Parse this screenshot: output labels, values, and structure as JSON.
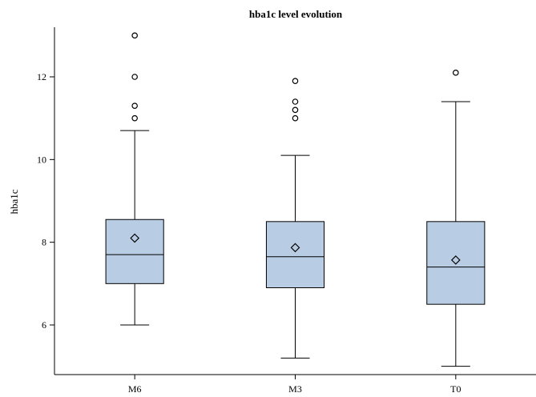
{
  "chart_data": {
    "type": "box",
    "title": "hba1c level evolution",
    "xlabel": "",
    "ylabel": "hba1c",
    "ylim": [
      4.8,
      13.2
    ],
    "yticks": [
      6,
      8,
      10,
      12
    ],
    "ytick_labels": [
      "6",
      "8",
      "10",
      "12"
    ],
    "grid": false,
    "legend": "none",
    "colors": {
      "box_fill": "#b8cce4",
      "stroke": "#000000"
    },
    "categories": [
      "M6",
      "M3",
      "T0"
    ],
    "boxes": [
      {
        "category": "M6",
        "whisker_low": 6.0,
        "q1": 7.0,
        "median": 7.7,
        "q3": 8.55,
        "whisker_high": 10.7,
        "mean": 8.1,
        "outliers": [
          11.0,
          11.3,
          12.0,
          13.0
        ]
      },
      {
        "category": "M3",
        "whisker_low": 5.2,
        "q1": 6.9,
        "median": 7.65,
        "q3": 8.5,
        "whisker_high": 10.1,
        "mean": 7.87,
        "outliers": [
          11.0,
          11.2,
          11.4,
          11.9
        ]
      },
      {
        "category": "T0",
        "whisker_low": 5.0,
        "q1": 6.5,
        "median": 7.4,
        "q3": 8.5,
        "whisker_high": 11.4,
        "mean": 7.57,
        "outliers": [
          12.1
        ]
      }
    ]
  }
}
